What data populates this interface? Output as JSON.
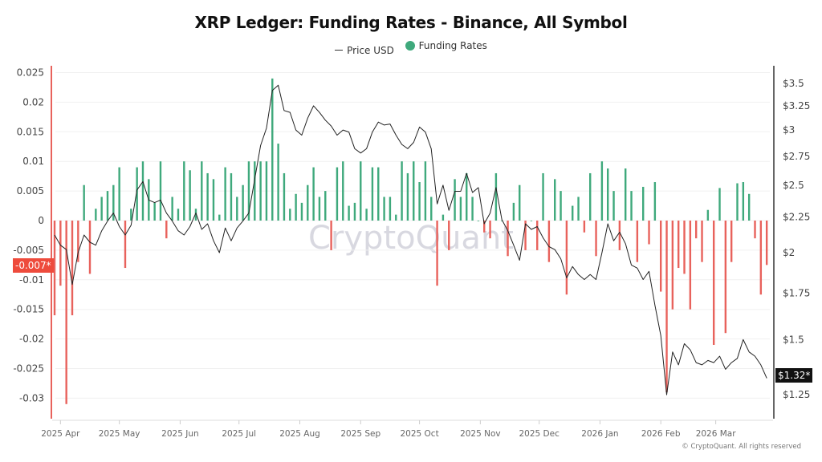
{
  "chart_data": {
    "type": "bar+line",
    "title": "XRP Ledger: Funding Rates - Binance, All Symbol",
    "legend": {
      "placement": "top-center",
      "entries": [
        "Price USD",
        "Funding Rates"
      ]
    },
    "watermark": "CryptoQuant",
    "copyright": "© CryptoQuant. All rights reserved",
    "colors": {
      "positive": "#3fa97c",
      "negative": "#e8625c",
      "price": "#222222",
      "left_axis": "#e8625c",
      "right_axis": "#333333",
      "last_funding_bg": "#ee4b3c",
      "last_price_bg": "#111111"
    },
    "grid": true,
    "left_axis": {
      "ylim": [
        -0.0325,
        0.026
      ],
      "ticks": [
        "0.025",
        "0.02",
        "0.015",
        "0.01",
        "0.005",
        "0",
        "-0.005",
        "-0.01",
        "-0.015",
        "-0.02",
        "-0.025",
        "-0.03"
      ],
      "last_value_label": "-0.007*"
    },
    "right_axis": {
      "scale": "log",
      "ylim": [
        1.2,
        3.6
      ],
      "ticks": [
        {
          "v": 3.5,
          "label": "$3.5"
        },
        {
          "v": 3.25,
          "label": "$3.25"
        },
        {
          "v": 3,
          "label": "$3"
        },
        {
          "v": 2.75,
          "label": "$2.75"
        },
        {
          "v": 2.5,
          "label": "$2.5"
        },
        {
          "v": 2.25,
          "label": "$2.25"
        },
        {
          "v": 2,
          "label": "$2"
        },
        {
          "v": 1.75,
          "label": "$1.75"
        },
        {
          "v": 1.5,
          "label": "$1.5"
        },
        {
          "v": 1.25,
          "label": "$1.25"
        }
      ],
      "last_value_label": "$1.32*"
    },
    "x_ticks": [
      {
        "date": "2025-04-01",
        "label": "2025 Apr"
      },
      {
        "date": "2025-05-01",
        "label": "2025 May"
      },
      {
        "date": "2025-06-01",
        "label": "2025 Jun"
      },
      {
        "date": "2025-07-01",
        "label": "2025 Jul"
      },
      {
        "date": "2025-08-01",
        "label": "2025 Aug"
      },
      {
        "date": "2025-09-01",
        "label": "2025 Sep"
      },
      {
        "date": "2025-10-01",
        "label": "2025 Oct"
      },
      {
        "date": "2025-11-01",
        "label": "2025 Nov"
      },
      {
        "date": "2025-12-01",
        "label": "2025 Dec"
      },
      {
        "date": "2026-01-01",
        "label": "2026 Jan"
      },
      {
        "date": "2026-02-01",
        "label": "2026 Feb"
      },
      {
        "date": "2026-03-01",
        "label": "2026 Mar"
      }
    ],
    "x": [
      "2025-03-29",
      "2025-04-01",
      "2025-04-04",
      "2025-04-07",
      "2025-04-10",
      "2025-04-13",
      "2025-04-16",
      "2025-04-19",
      "2025-04-22",
      "2025-04-25",
      "2025-04-28",
      "2025-05-01",
      "2025-05-04",
      "2025-05-07",
      "2025-05-10",
      "2025-05-13",
      "2025-05-16",
      "2025-05-19",
      "2025-05-22",
      "2025-05-25",
      "2025-05-28",
      "2025-05-31",
      "2025-06-03",
      "2025-06-06",
      "2025-06-09",
      "2025-06-12",
      "2025-06-15",
      "2025-06-18",
      "2025-06-21",
      "2025-06-24",
      "2025-06-27",
      "2025-06-30",
      "2025-07-03",
      "2025-07-06",
      "2025-07-09",
      "2025-07-12",
      "2025-07-15",
      "2025-07-18",
      "2025-07-21",
      "2025-07-24",
      "2025-07-27",
      "2025-07-30",
      "2025-08-02",
      "2025-08-05",
      "2025-08-08",
      "2025-08-11",
      "2025-08-14",
      "2025-08-17",
      "2025-08-20",
      "2025-08-23",
      "2025-08-26",
      "2025-08-29",
      "2025-09-01",
      "2025-09-04",
      "2025-09-07",
      "2025-09-10",
      "2025-09-13",
      "2025-09-16",
      "2025-09-19",
      "2025-09-22",
      "2025-09-25",
      "2025-09-28",
      "2025-10-01",
      "2025-10-04",
      "2025-10-07",
      "2025-10-10",
      "2025-10-13",
      "2025-10-16",
      "2025-10-19",
      "2025-10-22",
      "2025-10-25",
      "2025-10-28",
      "2025-10-31",
      "2025-11-03",
      "2025-11-06",
      "2025-11-09",
      "2025-11-12",
      "2025-11-15",
      "2025-11-18",
      "2025-11-21",
      "2025-11-24",
      "2025-11-27",
      "2025-11-30",
      "2025-12-03",
      "2025-12-06",
      "2025-12-09",
      "2025-12-12",
      "2025-12-15",
      "2025-12-18",
      "2025-12-21",
      "2025-12-24",
      "2025-12-27",
      "2025-12-30",
      "2026-01-02",
      "2026-01-05",
      "2026-01-08",
      "2026-01-11",
      "2026-01-14",
      "2026-01-17",
      "2026-01-20",
      "2026-01-23",
      "2026-01-26",
      "2026-01-29",
      "2026-02-01",
      "2026-02-04",
      "2026-02-07",
      "2026-02-10",
      "2026-02-13",
      "2026-02-16",
      "2026-02-19",
      "2026-02-22",
      "2026-02-25",
      "2026-02-28",
      "2026-03-03",
      "2026-03-06",
      "2026-03-09",
      "2026-03-12",
      "2026-03-15",
      "2026-03-18",
      "2026-03-21",
      "2026-03-24",
      "2026-03-27"
    ],
    "series": [
      {
        "name": "Funding Rates",
        "type": "bar",
        "axis": "left",
        "values": [
          -0.016,
          -0.011,
          -0.031,
          -0.016,
          -0.007,
          0.006,
          -0.009,
          0.002,
          0.004,
          0.005,
          0.006,
          0.009,
          -0.008,
          0.002,
          0.009,
          0.01,
          0.007,
          0.003,
          0.01,
          -0.003,
          0.004,
          0.002,
          0.01,
          0.0085,
          0.002,
          0.01,
          0.008,
          0.007,
          0.001,
          0.009,
          0.008,
          0.004,
          0.006,
          0.01,
          0.01,
          0.01,
          0.01,
          0.024,
          0.013,
          0.008,
          0.002,
          0.0045,
          0.003,
          0.006,
          0.009,
          0.004,
          0.005,
          -0.005,
          0.009,
          0.01,
          0.0025,
          0.003,
          0.01,
          0.002,
          0.009,
          0.009,
          0.004,
          0.004,
          0.001,
          0.01,
          0.008,
          0.01,
          0.0065,
          0.01,
          0.004,
          -0.011,
          0.001,
          -0.005,
          0.007,
          0.004,
          0.008,
          0.004,
          0.0,
          -0.002,
          -0.003,
          0.008,
          0.0,
          -0.006,
          0.003,
          0.006,
          -0.005,
          0.0,
          -0.005,
          0.008,
          -0.007,
          0.007,
          0.005,
          -0.0125,
          0.0025,
          0.004,
          -0.002,
          0.008,
          -0.006,
          0.01,
          0.0088,
          0.005,
          -0.005,
          0.0088,
          0.005,
          -0.007,
          0.0057,
          -0.004,
          0.0065,
          -0.012,
          -0.029,
          -0.015,
          -0.008,
          -0.009,
          -0.015,
          -0.003,
          -0.007,
          0.0018,
          -0.021,
          0.0055,
          -0.019,
          -0.007,
          0.0063,
          0.0065,
          0.0045,
          -0.003,
          -0.0125,
          -0.0075
        ]
      },
      {
        "name": "Price USD",
        "type": "line",
        "axis": "right",
        "values": [
          2.12,
          2.05,
          2.02,
          1.8,
          2.0,
          2.12,
          2.07,
          2.05,
          2.15,
          2.22,
          2.28,
          2.18,
          2.12,
          2.19,
          2.46,
          2.53,
          2.38,
          2.36,
          2.38,
          2.28,
          2.22,
          2.15,
          2.12,
          2.18,
          2.28,
          2.16,
          2.2,
          2.08,
          2.0,
          2.17,
          2.08,
          2.17,
          2.22,
          2.28,
          2.55,
          2.85,
          3.02,
          3.42,
          3.48,
          3.2,
          3.18,
          3.0,
          2.95,
          3.12,
          3.25,
          3.18,
          3.1,
          3.04,
          2.95,
          3.0,
          2.98,
          2.82,
          2.78,
          2.82,
          2.98,
          3.08,
          3.05,
          3.06,
          2.95,
          2.86,
          2.82,
          2.88,
          3.03,
          2.98,
          2.82,
          2.35,
          2.5,
          2.3,
          2.45,
          2.45,
          2.6,
          2.44,
          2.48,
          2.2,
          2.28,
          2.48,
          2.23,
          2.15,
          2.05,
          1.95,
          2.2,
          2.16,
          2.18,
          2.1,
          2.04,
          2.02,
          1.96,
          1.84,
          1.91,
          1.86,
          1.83,
          1.86,
          1.83,
          2.0,
          2.2,
          2.08,
          2.14,
          2.06,
          1.92,
          1.9,
          1.83,
          1.88,
          1.68,
          1.52,
          1.25,
          1.44,
          1.38,
          1.48,
          1.45,
          1.39,
          1.38,
          1.4,
          1.39,
          1.42,
          1.36,
          1.39,
          1.41,
          1.5,
          1.44,
          1.42,
          1.38,
          1.32
        ]
      }
    ]
  }
}
